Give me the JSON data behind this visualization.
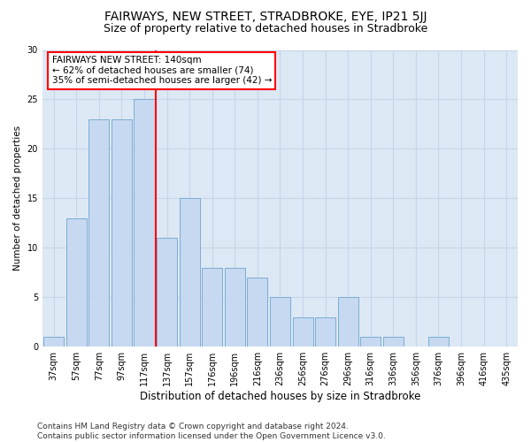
{
  "title": "FAIRWAYS, NEW STREET, STRADBROKE, EYE, IP21 5JJ",
  "subtitle": "Size of property relative to detached houses in Stradbroke",
  "xlabel": "Distribution of detached houses by size in Stradbroke",
  "ylabel": "Number of detached properties",
  "categories": [
    "37sqm",
    "57sqm",
    "77sqm",
    "97sqm",
    "117sqm",
    "137sqm",
    "157sqm",
    "176sqm",
    "196sqm",
    "216sqm",
    "236sqm",
    "256sqm",
    "276sqm",
    "296sqm",
    "316sqm",
    "336sqm",
    "356sqm",
    "376sqm",
    "396sqm",
    "416sqm",
    "435sqm"
  ],
  "values": [
    1,
    13,
    23,
    23,
    25,
    11,
    15,
    8,
    8,
    7,
    5,
    3,
    3,
    5,
    1,
    1,
    0,
    1,
    0,
    0,
    0
  ],
  "bar_color": "#c6d9f0",
  "bar_edge_color": "#7badd4",
  "red_line_index": 5,
  "annotation_text": "FAIRWAYS NEW STREET: 140sqm\n← 62% of detached houses are smaller (74)\n35% of semi-detached houses are larger (42) →",
  "annotation_box_color": "white",
  "annotation_box_edge_color": "red",
  "ylim": [
    0,
    30
  ],
  "yticks": [
    0,
    5,
    10,
    15,
    20,
    25,
    30
  ],
  "grid_color": "#c8d4e8",
  "background_color": "#dde8f5",
  "footer": "Contains HM Land Registry data © Crown copyright and database right 2024.\nContains public sector information licensed under the Open Government Licence v3.0.",
  "title_fontsize": 10,
  "subtitle_fontsize": 9,
  "xlabel_fontsize": 8.5,
  "ylabel_fontsize": 7.5,
  "tick_fontsize": 7,
  "footer_fontsize": 6.5,
  "annotation_fontsize": 7.5
}
